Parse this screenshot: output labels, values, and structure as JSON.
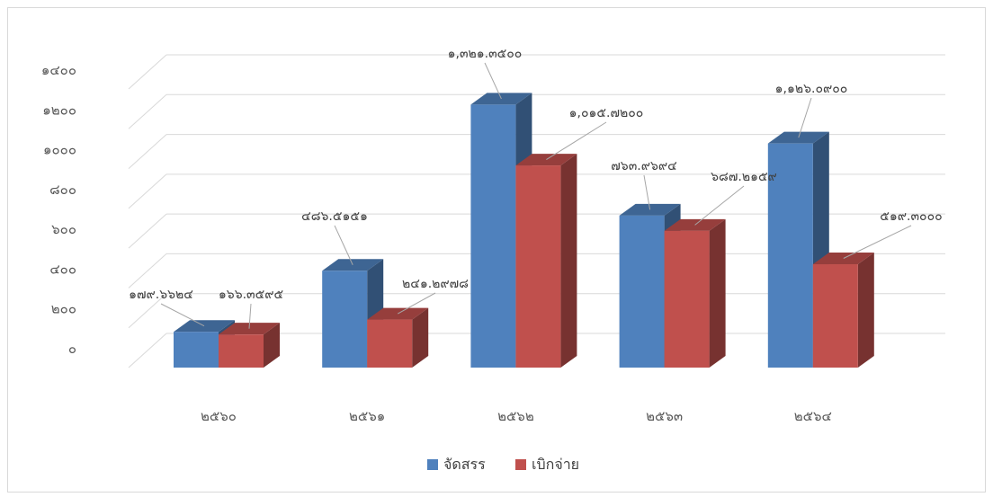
{
  "chart_data": {
    "type": "bar",
    "title": "",
    "xlabel": "",
    "ylabel": "",
    "ylim": [
      0,
      1400
    ],
    "yticks": [
      "๐",
      "๒๐๐",
      "๔๐๐",
      "๖๐๐",
      "๘๐๐",
      "๑๐๐๐",
      "๑๒๐๐",
      "๑๔๐๐"
    ],
    "grid": true,
    "legend_position": "bottom",
    "categories": [
      "๒๕๖๐",
      "๒๕๖๑",
      "๒๕๖๒",
      "๒๕๖๓",
      "๒๕๖๔"
    ],
    "series": [
      {
        "name": "จัดสรร",
        "color": "#4f81bd",
        "values": [
          179.6624,
          486.5151,
          1321.35,
          763.9694,
          1126.09
        ],
        "labels": [
          "๑๗๙.๖๖๒๔",
          "๔๘๖.๕๑๕๑",
          "๑,๓๒๑.๓๕๐๐",
          "๗๖๓.๙๖๙๔",
          "๑,๑๒๖.๐๙๐๐"
        ]
      },
      {
        "name": "เบิกจ่าย",
        "color": "#c0504d",
        "values": [
          166.3595,
          241.2978,
          1015.72,
          687.2159,
          519.3
        ],
        "labels": [
          "๑๖๖.๓๕๙๕",
          "๒๔๑.๒๙๗๘",
          "๑,๐๑๕.๗๒๐๐",
          "๖๘๗.๒๑๕๙",
          "๕๑๙.๓๐๐๐"
        ]
      }
    ]
  }
}
